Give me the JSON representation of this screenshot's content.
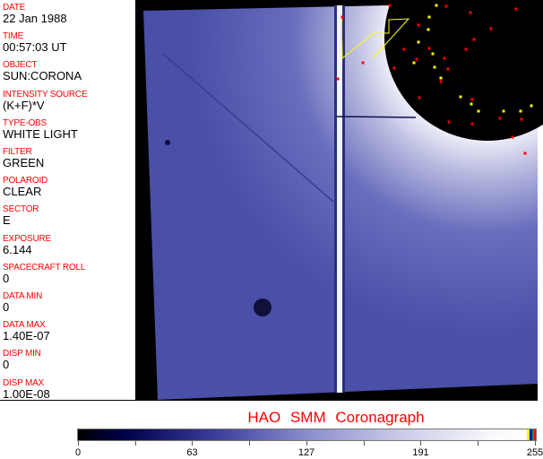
{
  "fields": [
    {
      "label": "DATE",
      "value": "22 Jan 1988"
    },
    {
      "label": "TIME",
      "value": "00:57:03 UT"
    },
    {
      "label": "OBJECT",
      "value": "SUN:CORONA"
    },
    {
      "label": "INTENSITY SOURCE",
      "value": "(K+F)*V"
    },
    {
      "label": "TYPE-OBS",
      "value": "WHITE LIGHT"
    },
    {
      "label": "FILTER",
      "value": "GREEN"
    },
    {
      "label": "POLAROID",
      "value": "CLEAR"
    },
    {
      "label": "SECTOR",
      "value": "E"
    },
    {
      "label": "EXPOSURE",
      "value": "6.144"
    },
    {
      "label": "SPACECRAFT ROLL",
      "value": "0"
    },
    {
      "label": "DATA MIN",
      "value": "0"
    },
    {
      "label": "DATA MAX",
      "value": "1.40E-07"
    },
    {
      "label": "DISP MIN",
      "value": "0"
    },
    {
      "label": "DISP MAX",
      "value": "1.00E-08"
    }
  ],
  "title": "HAO  SMM Coronagraph",
  "colorbar": {
    "min": 0,
    "max": 255,
    "ticks": [
      "0",
      "63",
      "127",
      "191",
      "255"
    ],
    "colors": {
      "low": "#000000",
      "mid": "#8a8ccc",
      "high": "#ffffff",
      "markers": [
        "#ffff00",
        "#0000ff",
        "#00aa00",
        "#ff0000"
      ]
    }
  },
  "image": {
    "background": "#000000",
    "corona_color": "#4a4fa8",
    "marker_colors": [
      "#ff0000",
      "#ffff00"
    ]
  }
}
